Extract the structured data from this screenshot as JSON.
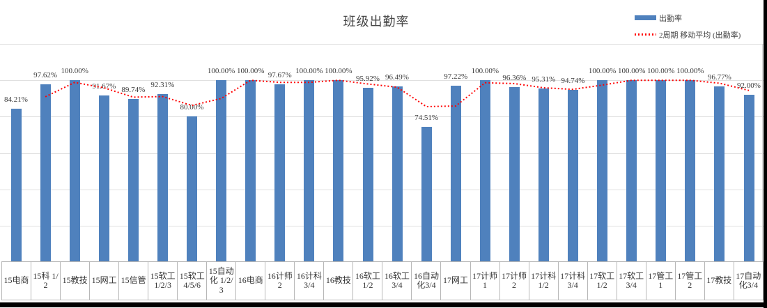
{
  "title": "班级出勤率",
  "legend": {
    "position": "top-right",
    "items": [
      {
        "label": "出勤率",
        "swatch": "bar",
        "color": "#4F81BD"
      },
      {
        "label": "2周期 移动平均 (出勤率)",
        "swatch": "dotted-line",
        "color": "#FF0000"
      }
    ]
  },
  "colors": {
    "bar": "#4F81BD",
    "moving_average_line": "#FF0000",
    "gridline": "#E0E0E0",
    "axis_table_border": "#B7B7B7",
    "text": "#404040",
    "screenshot_edge": "#000000"
  },
  "chart_data": {
    "type": "bar",
    "title": "班级出勤率",
    "categories": [
      "15电商",
      "15科 1/2",
      "15教技",
      "15网工",
      "15信管",
      "15软工 1/2/3",
      "15软工 4/5/6",
      "15自动化 1/2/3",
      "16电商",
      "16计师 2",
      "16计科 3/4",
      "16教技",
      "16软工 1/2",
      "16软工 3/4",
      "16自动化3/4",
      "17网工",
      "17计师 1",
      "17计师 2",
      "17计科 1/2",
      "17计科 3/4",
      "17软工 1/2",
      "17软工 3/4",
      "17管工 1",
      "17管工 2",
      "17教技",
      "17自动化3/4"
    ],
    "series": [
      {
        "name": "出勤率",
        "type": "bar",
        "color": "#4F81BD",
        "values": [
          84.21,
          97.62,
          100.0,
          91.67,
          89.74,
          92.31,
          80.0,
          100.0,
          100.0,
          97.67,
          100.0,
          100.0,
          95.92,
          96.49,
          74.51,
          97.22,
          100.0,
          96.36,
          95.31,
          94.74,
          100.0,
          100.0,
          100.0,
          100.0,
          96.77,
          92.0
        ],
        "data_labels": [
          "84.21%",
          "97.62%",
          "100.00%",
          "91.67%",
          "89.74%",
          "92.31%",
          "80.00%",
          "100.00%",
          "100.00%",
          "97.67%",
          "100.00%",
          "100.00%",
          "95.92%",
          "96.49%",
          "74.51%",
          "97.22%",
          "100.00%",
          "96.36%",
          "95.31%",
          "94.74%",
          "100.00%",
          "100.00%",
          "100.00%",
          "100.00%",
          "96.77%",
          "92.00%"
        ]
      },
      {
        "name": "2周期 移动平均 (出勤率)",
        "type": "line",
        "line_style": "dotted",
        "color": "#FF0000",
        "values": [
          null,
          90.92,
          98.81,
          95.84,
          90.71,
          91.03,
          86.16,
          90.0,
          100.0,
          98.84,
          98.84,
          100.0,
          97.96,
          96.21,
          85.5,
          85.87,
          98.61,
          98.18,
          95.84,
          95.03,
          97.37,
          100.0,
          100.0,
          100.0,
          98.39,
          94.39
        ]
      }
    ],
    "xlabel": "",
    "ylabel": "",
    "ylim": [
      0,
      120
    ],
    "gridline_interval": 20,
    "grid": true,
    "y_axis_labels_visible": false,
    "data_labels_position": "above bars, percent with 2 decimals",
    "legend_position": "top-right"
  }
}
